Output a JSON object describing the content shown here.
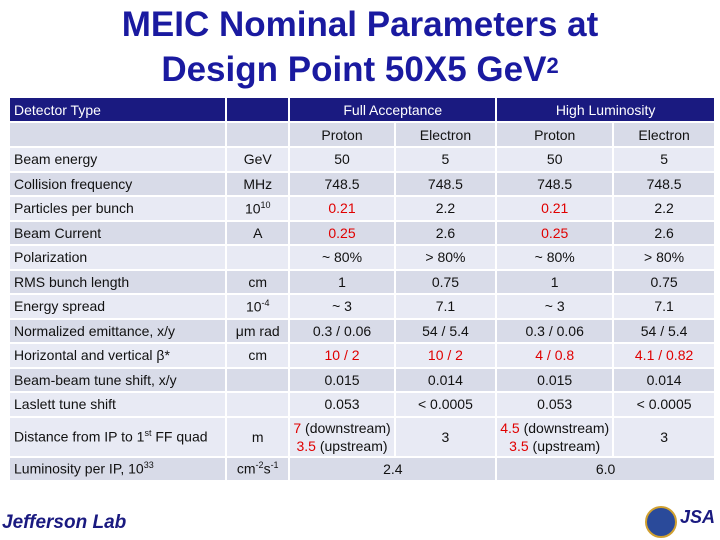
{
  "title": {
    "line1": "MEIC Nominal Parameters at",
    "line2": "Design Point 50X5 GeV",
    "line2_sup": "2"
  },
  "header": {
    "col0": "Detector Type",
    "col1": "",
    "col2": "Full Acceptance",
    "col3": "High Luminosity"
  },
  "subheader": {
    "c2": "Proton",
    "c3": "Electron",
    "c4": "Proton",
    "c5": "Electron"
  },
  "rows": [
    {
      "label": "Beam energy",
      "unit": "GeV",
      "fp": "50",
      "fe": "5",
      "hp": "50",
      "he": "5"
    },
    {
      "label": "Collision frequency",
      "unit": "MHz",
      "fp": "748.5",
      "fe": "748.5",
      "hp": "748.5",
      "he": "748.5"
    },
    {
      "label": "Particles per bunch",
      "unit": "10",
      "unit_sup": "10",
      "fp": "0.21",
      "fe": "2.2",
      "hp": "0.21",
      "he": "2.2"
    },
    {
      "label": "Beam Current",
      "unit": "A",
      "fp": "0.25",
      "fe": "2.6",
      "hp": "0.25",
      "he": "2.6"
    },
    {
      "label": "Polarization",
      "unit": "",
      "fp": "~ 80%",
      "fe": "> 80%",
      "hp": "~ 80%",
      "he": "> 80%"
    },
    {
      "label": "RMS bunch length",
      "unit": "cm",
      "fp": "1",
      "fe": "0.75",
      "hp": "1",
      "he": "0.75"
    },
    {
      "label": "Energy spread",
      "unit": "10",
      "unit_sup": "-4",
      "fp": "~ 3",
      "fe": "7.1",
      "hp": "~ 3",
      "he": "7.1"
    },
    {
      "label": "Normalized emittance, x/y",
      "unit": "μm rad",
      "fp": "0.3 / 0.06",
      "fe": "54 / 5.4",
      "hp": "0.3 / 0.06",
      "he": "54 / 5.4"
    },
    {
      "label": "Horizontal and vertical β*",
      "unit": "cm",
      "fp": "10 / 2",
      "fe": "10 / 2",
      "hp": "4 / 0.8",
      "he": "4.1 / 0.82"
    },
    {
      "label": "Beam-beam tune shift, x/y",
      "unit": "",
      "fp": "0.015",
      "fe": "0.014",
      "hp": "0.015",
      "he": "0.014"
    },
    {
      "label": "Laslett tune shift",
      "unit": "",
      "fp": "0.053",
      "fe": "< 0.0005",
      "hp": "0.053",
      "he": "< 0.0005"
    }
  ],
  "ffquad": {
    "label": "Distance from IP to 1",
    "label_sup": "st",
    "label_tail": " FF quad",
    "unit": "m",
    "fp_a_num": "7",
    "fp_a": " (downstream)",
    "fp_b_num": "3.5",
    "fp_b": " (upstream)",
    "fe": "3",
    "hp_a_num": "4.5",
    "hp_a": " (downstream)",
    "hp_b_num": "3.5",
    "hp_b": " (upstream)",
    "he": "3"
  },
  "lumi": {
    "label": "Luminosity per IP, 10",
    "label_sup": "33",
    "unit": "cm",
    "unit_sup1": "-2",
    "unit_mid": "s",
    "unit_sup2": "-1",
    "full": "2.4",
    "high": "6.0"
  },
  "footer": {
    "logo_text": "Jefferson Lab",
    "jsa": "JSA"
  }
}
